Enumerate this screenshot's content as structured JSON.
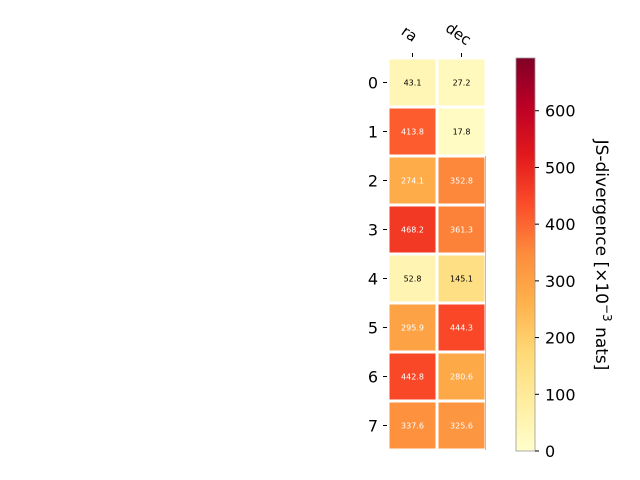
{
  "chart_data": {
    "type": "heatmap",
    "columns": [
      "ra",
      "dec"
    ],
    "rows": [
      "0",
      "1",
      "2",
      "3",
      "4",
      "5",
      "6",
      "7"
    ],
    "values": [
      [
        43.1,
        27.2
      ],
      [
        413.8,
        17.8
      ],
      [
        274.1,
        352.8
      ],
      [
        468.2,
        361.3
      ],
      [
        52.8,
        145.1
      ],
      [
        295.9,
        444.3
      ],
      [
        442.8,
        280.6
      ],
      [
        337.6,
        325.6
      ]
    ],
    "colorbar": {
      "label_main": "JS-divergence [×10",
      "label_exp": "−3",
      "label_unit": " nats]",
      "ticks": [
        0,
        100,
        200,
        300,
        400,
        500,
        600
      ],
      "tick_labels": [
        "0",
        "100",
        "200",
        "300",
        "400",
        "500",
        "600"
      ],
      "vmin": 0,
      "vmax": 693
    },
    "colormap": [
      "#ffffcc",
      "#ffeda0",
      "#fed976",
      "#feb24c",
      "#fd8d3c",
      "#fc4e2a",
      "#e31a1c",
      "#bd0026",
      "#800026"
    ]
  }
}
